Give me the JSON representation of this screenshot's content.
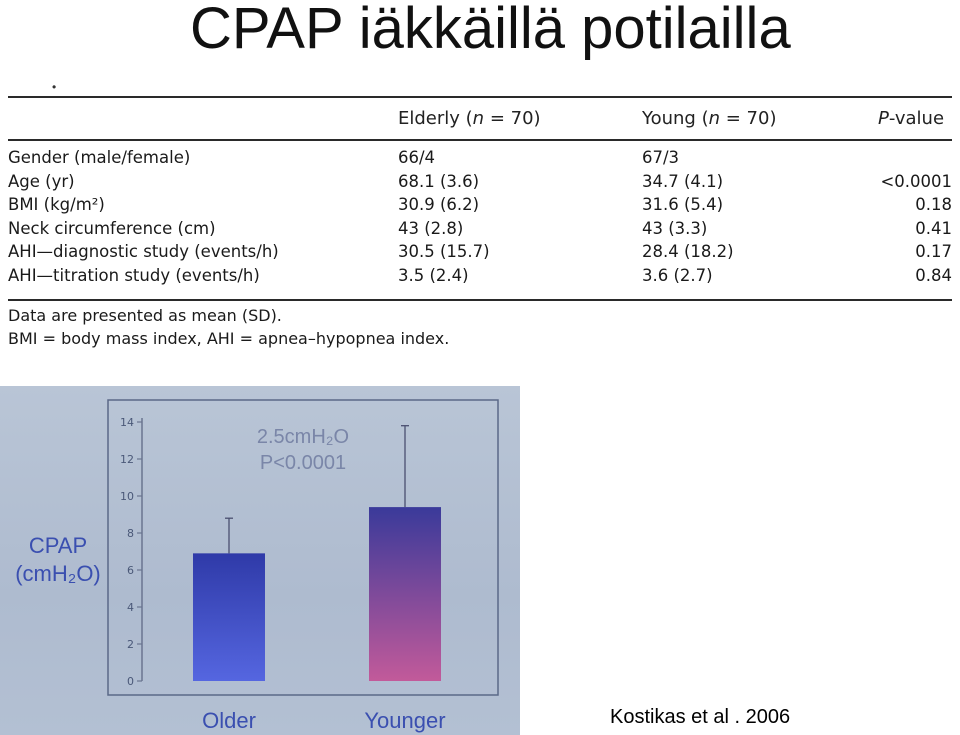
{
  "slide": {
    "title": "CPAP iäkkäillä potilailla",
    "bullet_mark": "•",
    "citation": "Kostikas et al . 2006"
  },
  "table": {
    "headers": [
      "",
      "Elderly (n = 70)",
      "Young (n = 70)",
      "P-value"
    ],
    "rows": [
      {
        "label": "Gender (male/female)",
        "elderly": "66/4",
        "young": "67/3",
        "p": ""
      },
      {
        "label": "Age (yr)",
        "elderly": "68.1 (3.6)",
        "young": "34.7 (4.1)",
        "p": "<0.0001"
      },
      {
        "label": "BMI (kg/m²)",
        "elderly": "30.9 (6.2)",
        "young": "31.6 (5.4)",
        "p": "0.18"
      },
      {
        "label": "Neck circumference (cm)",
        "elderly": "43 (2.8)",
        "young": "43 (3.3)",
        "p": "0.41"
      },
      {
        "label": "AHI—diagnostic study (events/h)",
        "elderly": "30.5 (15.7)",
        "young": "28.4 (18.2)",
        "p": "0.17"
      },
      {
        "label": "AHI—titration study (events/h)",
        "elderly": "3.5 (2.4)",
        "young": "3.6 (2.7)",
        "p": "0.84"
      }
    ],
    "notes": [
      "Data are presented as mean (SD).",
      "BMI = body mass index, AHI = apnea–hypopnea index."
    ]
  },
  "chart_data": {
    "type": "bar",
    "categories": [
      "Older",
      "Younger"
    ],
    "values": [
      6.9,
      9.4
    ],
    "error_upper": [
      8.8,
      13.8
    ],
    "ylabel": "CPAP (cmH₂O)",
    "ylabel_line1": "CPAP",
    "ylabel_line2": "(cmH₂O)",
    "ylim": [
      0,
      14
    ],
    "yticks": [
      0,
      2,
      4,
      6,
      8,
      10,
      12,
      14
    ],
    "annotation_line1": "2.5cmH₂O",
    "annotation_line2": "P<0.0001",
    "colors": {
      "Older": "#3b4fc8",
      "Younger": "#b2558f",
      "axis": "#6a7590",
      "label": "#3a4fb0"
    },
    "grid": false
  }
}
